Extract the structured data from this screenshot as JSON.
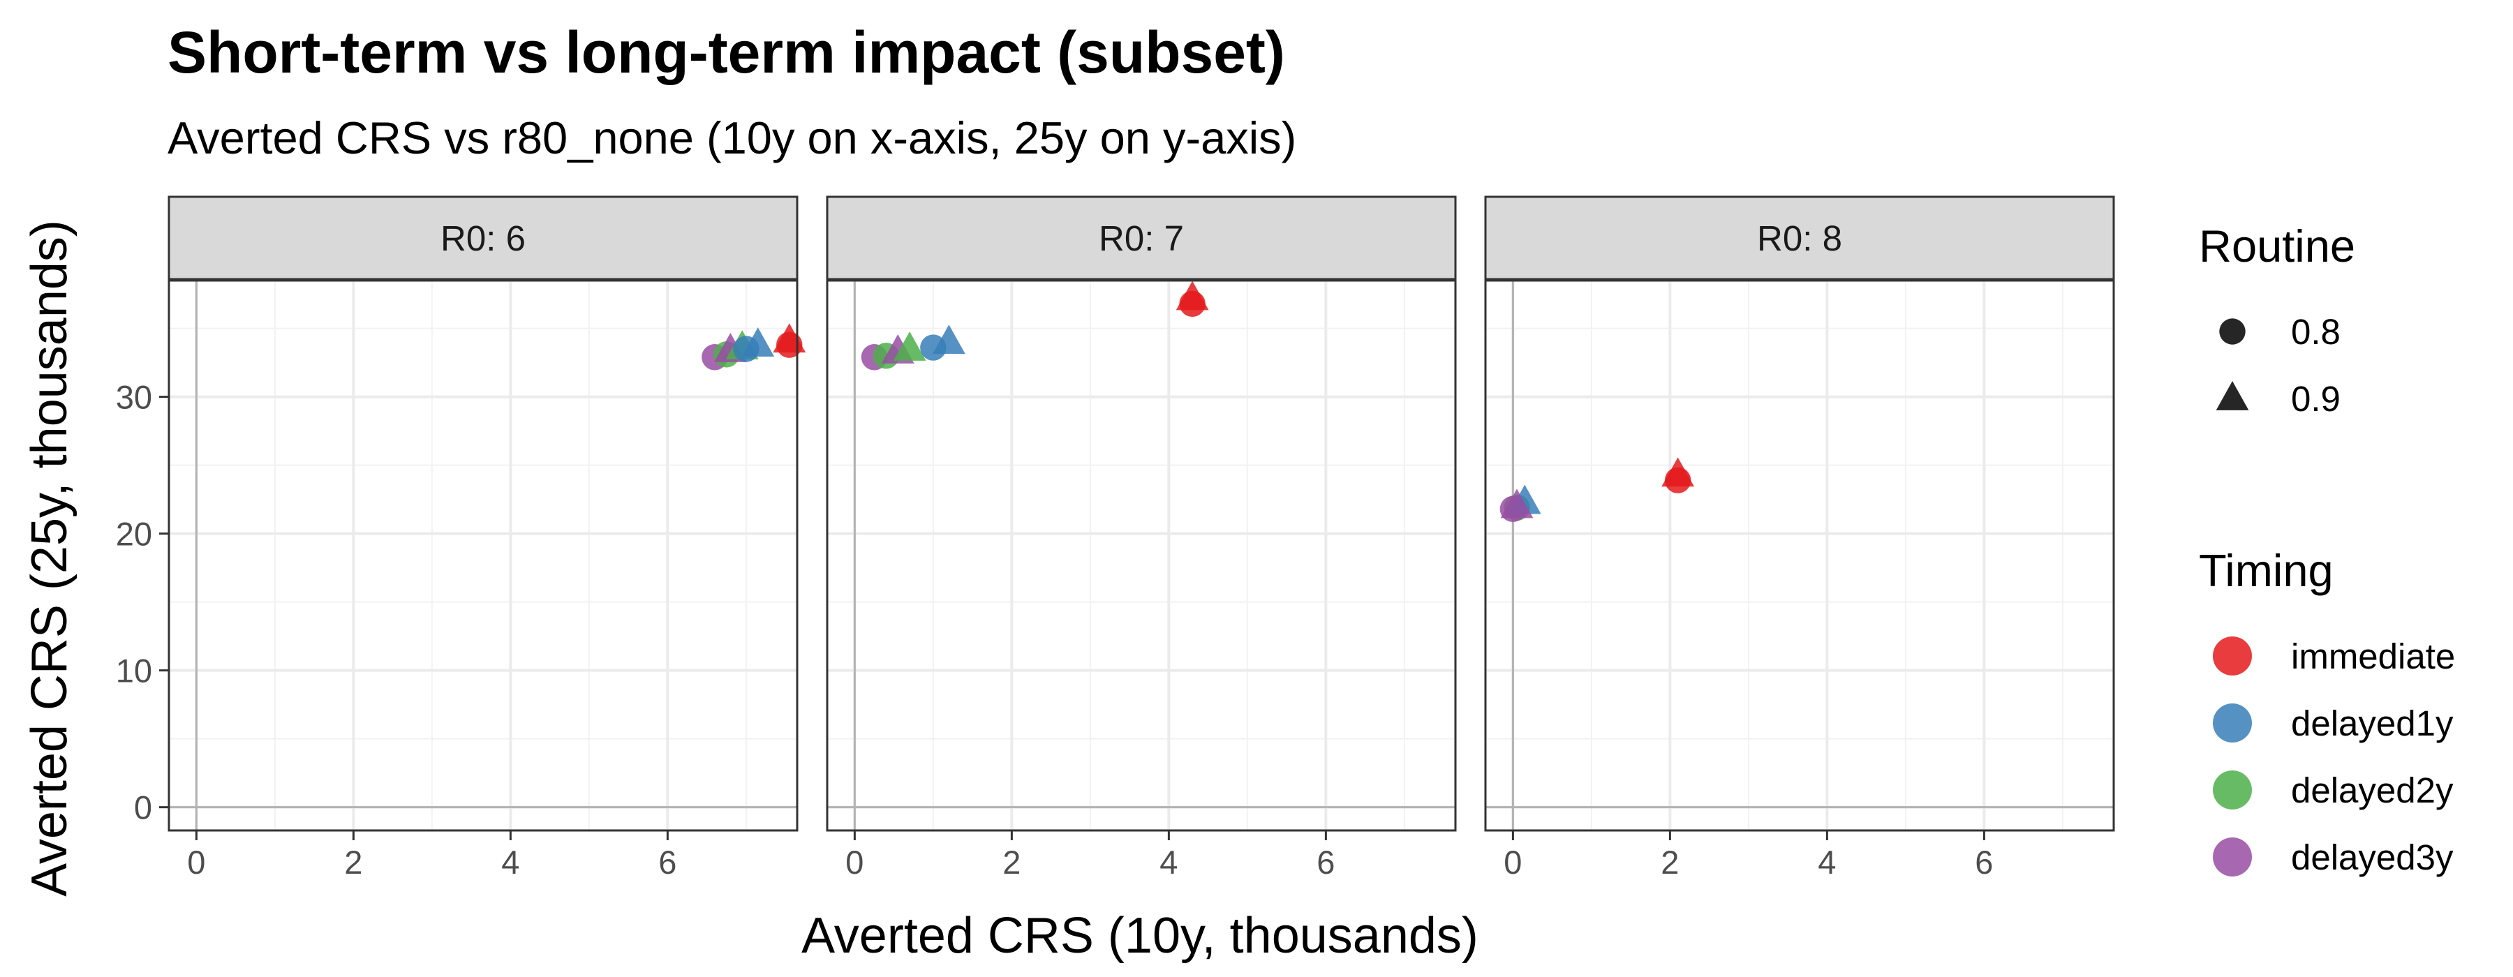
{
  "chart_data": {
    "type": "scatter",
    "title": "Short-term vs long-term impact (subset)",
    "subtitle": "Averted CRS vs r80_none (10y on x-axis, 25y on y-axis)",
    "xlabel": "Averted CRS (10y, thousands)",
    "ylabel": "Averted CRS (25y, thousands)",
    "xlim": [
      -0.35,
      7.65
    ],
    "ylim": [
      -1.7,
      38.5
    ],
    "xticks": [
      0,
      2,
      4,
      6
    ],
    "yticks": [
      0,
      10,
      20,
      30
    ],
    "grid": true,
    "legend_position": "right",
    "facet_prefix": "R0: ",
    "shape_legend": {
      "title": "Routine",
      "entries": [
        {
          "label": "0.8",
          "shape": "circle"
        },
        {
          "label": "0.9",
          "shape": "triangle"
        }
      ]
    },
    "color_legend": {
      "title": "Timing",
      "entries": [
        {
          "label": "immediate",
          "color": "#E41A1C"
        },
        {
          "label": "delayed1y",
          "color": "#377EB8"
        },
        {
          "label": "delayed2y",
          "color": "#4DAF4A"
        },
        {
          "label": "delayed3y",
          "color": "#984EA3"
        }
      ]
    },
    "facets": [
      {
        "label": "6",
        "points": [
          {
            "timing": "delayed3y",
            "routine": "0.8",
            "x": 6.6,
            "y": 32.9
          },
          {
            "timing": "delayed2y",
            "routine": "0.8",
            "x": 6.75,
            "y": 33.1
          },
          {
            "timing": "delayed3y",
            "routine": "0.9",
            "x": 6.8,
            "y": 33.4
          },
          {
            "timing": "delayed2y",
            "routine": "0.9",
            "x": 6.95,
            "y": 33.6
          },
          {
            "timing": "delayed1y",
            "routine": "0.8",
            "x": 7.0,
            "y": 33.5
          },
          {
            "timing": "delayed1y",
            "routine": "0.9",
            "x": 7.15,
            "y": 33.8
          },
          {
            "timing": "immediate",
            "routine": "0.8",
            "x": 7.55,
            "y": 33.8
          },
          {
            "timing": "immediate",
            "routine": "0.9",
            "x": 7.55,
            "y": 34.1
          }
        ]
      },
      {
        "label": "7",
        "points": [
          {
            "timing": "delayed3y",
            "routine": "0.8",
            "x": 0.25,
            "y": 32.9
          },
          {
            "timing": "delayed2y",
            "routine": "0.8",
            "x": 0.4,
            "y": 33.0
          },
          {
            "timing": "delayed3y",
            "routine": "0.9",
            "x": 0.55,
            "y": 33.3
          },
          {
            "timing": "delayed2y",
            "routine": "0.9",
            "x": 0.7,
            "y": 33.5
          },
          {
            "timing": "delayed1y",
            "routine": "0.8",
            "x": 1.0,
            "y": 33.6
          },
          {
            "timing": "delayed1y",
            "routine": "0.9",
            "x": 1.2,
            "y": 34.0
          },
          {
            "timing": "immediate",
            "routine": "0.8",
            "x": 4.3,
            "y": 36.8
          },
          {
            "timing": "immediate",
            "routine": "0.9",
            "x": 4.3,
            "y": 37.2
          }
        ]
      },
      {
        "label": "8",
        "points": [
          {
            "timing": "delayed2y",
            "routine": "0.8",
            "x": 0.05,
            "y": 21.9
          },
          {
            "timing": "delayed3y",
            "routine": "0.8",
            "x": 0.0,
            "y": 21.8
          },
          {
            "timing": "delayed1y",
            "routine": "0.9",
            "x": 0.15,
            "y": 22.3
          },
          {
            "timing": "delayed3y",
            "routine": "0.9",
            "x": 0.05,
            "y": 22.0
          },
          {
            "timing": "immediate",
            "routine": "0.8",
            "x": 2.1,
            "y": 23.9
          },
          {
            "timing": "immediate",
            "routine": "0.9",
            "x": 2.1,
            "y": 24.3
          }
        ]
      }
    ]
  }
}
